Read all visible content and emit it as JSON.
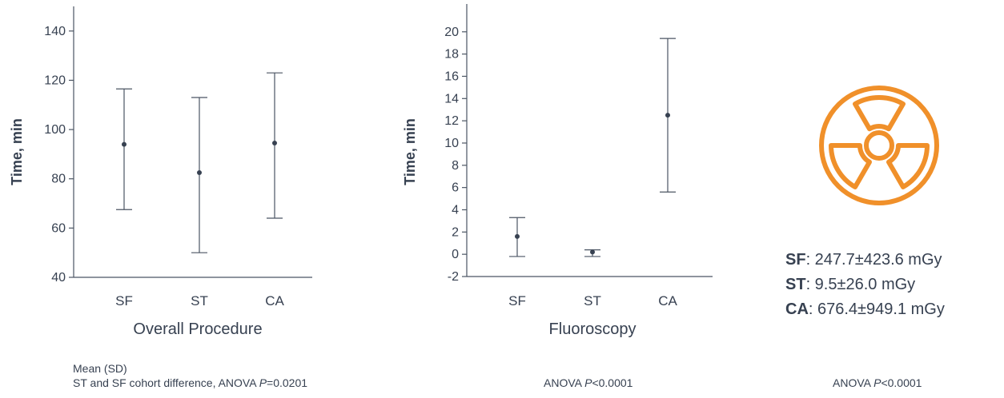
{
  "chart_data": [
    {
      "type": "errorbar",
      "xtitle": "Overall Procedure",
      "ylabel": "Time, min",
      "categories": [
        "SF",
        "ST",
        "CA"
      ],
      "ylim": [
        40,
        150
      ],
      "yticks": [
        40,
        60,
        80,
        100,
        120,
        140
      ],
      "series": [
        {
          "mean": [
            94,
            82.5,
            94.5
          ],
          "lower": [
            67.5,
            50,
            64
          ],
          "upper": [
            116.5,
            113,
            123
          ]
        }
      ],
      "grid": false,
      "footnote": {
        "line1": "Mean (SD)",
        "line2_pre": "ST and SF cohort difference, ANOVA ",
        "line2_p": "P",
        "line2_post": "=0.0201"
      }
    },
    {
      "type": "errorbar",
      "xtitle": "Fluoroscopy",
      "ylabel": "Time, min",
      "categories": [
        "SF",
        "ST",
        "CA"
      ],
      "ylim": [
        -2,
        22.5
      ],
      "yticks": [
        -2,
        0,
        2,
        4,
        6,
        8,
        10,
        12,
        14,
        16,
        18,
        20
      ],
      "series": [
        {
          "mean": [
            1.6,
            0.2,
            12.5
          ],
          "lower": [
            -0.2,
            -0.2,
            5.6
          ],
          "upper": [
            3.3,
            0.4,
            19.4
          ]
        }
      ],
      "grid": false,
      "footnote": {
        "pre": "ANOVA ",
        "p": "P",
        "post": "<0.0001"
      }
    }
  ],
  "radiation_panel": {
    "icon": "radiation-icon",
    "icon_color": "#f0902a",
    "doses": [
      {
        "key": "SF",
        "value": ": 247.7±423.6 mGy"
      },
      {
        "key": "ST",
        "value": ": 9.5±26.0 mGy"
      },
      {
        "key": "CA",
        "value": ": 676.4±949.1 mGy"
      }
    ],
    "footnote": {
      "pre": "ANOVA ",
      "p": "P",
      "post": "<0.0001"
    }
  }
}
